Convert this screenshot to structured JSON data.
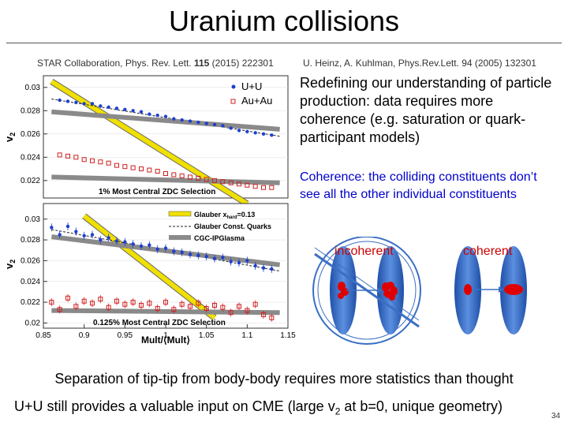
{
  "slide": {
    "title": "Uranium collisions",
    "citation_left_pre": "STAR Collaboration, Phys. Rev. Lett. ",
    "citation_left_vol": "115",
    "citation_left_post": " (2015) 222301",
    "citation_right": "U. Heinz, A. Kuhlman, Phys.Rev.Lett. 94 (2005) 132301",
    "paragraph1": "Redefining our understanding of particle production: data requires more coherence (e.g. saturation or quark-participant models)",
    "paragraph2": "Coherence: the colliding constituents don’t see all the other individual constituents",
    "diagram": {
      "incoherent_label": "incoherent",
      "coherent_label": "coherent"
    },
    "bottom_line1": "Separation of tip-tip from body-body requires more statistics than thought",
    "bottom_line2_pre": "U+U still provides a valuable input on CME (large v",
    "bottom_line2_sub": "2",
    "bottom_line2_post": " at b=0, unique geometry)",
    "page_number": "34",
    "colors": {
      "text_blue": "#0000cc",
      "text_red": "#cc0000",
      "nucleus_blue": "#3a6fc4",
      "parton_red": "#e00000"
    }
  },
  "chart_data": [
    {
      "type": "scatter",
      "panel": "top",
      "ylabel": "v2",
      "yticks": [
        "0.03",
        "0.028",
        "0.026",
        "0.024",
        "0.022"
      ],
      "ylim": [
        0.0205,
        0.031
      ],
      "xlim": [
        0.85,
        1.15
      ],
      "legend": [
        "U+U",
        "Au+Au"
      ],
      "annotation": "1% Most Central ZDC Selection",
      "series": [
        {
          "name": "U+U",
          "marker": "filled-circle",
          "color": "#1f3fd0",
          "x": [
            0.87,
            0.88,
            0.89,
            0.9,
            0.91,
            0.92,
            0.93,
            0.94,
            0.95,
            0.96,
            0.97,
            0.98,
            0.99,
            1.0,
            1.01,
            1.02,
            1.03,
            1.04,
            1.05,
            1.06,
            1.07,
            1.08,
            1.09,
            1.1,
            1.11,
            1.12,
            1.13
          ],
          "y": [
            0.0289,
            0.0288,
            0.0287,
            0.0286,
            0.0286,
            0.0284,
            0.0283,
            0.0282,
            0.0281,
            0.028,
            0.0279,
            0.0277,
            0.0276,
            0.0275,
            0.0273,
            0.0272,
            0.0271,
            0.027,
            0.0269,
            0.0268,
            0.0267,
            0.0265,
            0.0263,
            0.0262,
            0.0261,
            0.026,
            0.0259
          ]
        },
        {
          "name": "Au+Au",
          "marker": "open-square",
          "color": "#d02020",
          "x": [
            0.87,
            0.88,
            0.89,
            0.9,
            0.91,
            0.92,
            0.93,
            0.94,
            0.95,
            0.96,
            0.97,
            0.98,
            0.99,
            1.0,
            1.01,
            1.02,
            1.03,
            1.04,
            1.05,
            1.06,
            1.07,
            1.08,
            1.09,
            1.1,
            1.11,
            1.12,
            1.13
          ],
          "y": [
            0.0242,
            0.0241,
            0.024,
            0.0238,
            0.0237,
            0.0236,
            0.0235,
            0.0233,
            0.0232,
            0.0231,
            0.023,
            0.0229,
            0.0228,
            0.0226,
            0.0225,
            0.0224,
            0.0223,
            0.0222,
            0.0221,
            0.022,
            0.0219,
            0.0218,
            0.0217,
            0.0216,
            0.0215,
            0.0214,
            0.0214
          ]
        }
      ],
      "model_curves": [
        {
          "name": "Glauber",
          "x": [
            0.86,
            1.1
          ],
          "y": [
            0.0305,
            0.02
          ]
        },
        {
          "name": "Glauber Const. Quarks",
          "x": [
            0.86,
            1.14
          ],
          "y": [
            0.029,
            0.0258
          ]
        },
        {
          "name": "CGC-IPGlasma",
          "x": [
            0.86,
            1.14
          ],
          "y": [
            0.0279,
            0.0264
          ]
        },
        {
          "name": "Au+Au band",
          "x": [
            0.86,
            1.14
          ],
          "y": [
            0.0223,
            0.0218
          ]
        }
      ]
    },
    {
      "type": "scatter",
      "panel": "bottom",
      "ylabel": "v2",
      "xlabel": "Mult/⟨Mult⟩",
      "xticks": [
        "0.85",
        "0.9",
        "0.95",
        "1",
        "1.05",
        "1.1",
        "1.15"
      ],
      "yticks": [
        "0.03",
        "0.028",
        "0.026",
        "0.024",
        "0.022",
        "0.02"
      ],
      "ylim": [
        0.0195,
        0.0315
      ],
      "xlim": [
        0.85,
        1.15
      ],
      "legend": [
        "Glauber x_hard=0.13",
        "Glauber Const. Quarks",
        "CGC-IPGlasma"
      ],
      "annotation": "0.125% Most Central ZDC Selection",
      "series": [
        {
          "name": "U+U",
          "marker": "filled-circle",
          "color": "#1f3fd0",
          "x": [
            0.86,
            0.87,
            0.88,
            0.89,
            0.9,
            0.91,
            0.92,
            0.93,
            0.94,
            0.95,
            0.96,
            0.97,
            0.98,
            0.99,
            1.0,
            1.01,
            1.02,
            1.03,
            1.04,
            1.05,
            1.06,
            1.07,
            1.08,
            1.09,
            1.1,
            1.11,
            1.12,
            1.13
          ],
          "y": [
            0.0292,
            0.0285,
            0.0293,
            0.0288,
            0.0284,
            0.0285,
            0.028,
            0.0282,
            0.0279,
            0.0278,
            0.0276,
            0.0274,
            0.0275,
            0.0271,
            0.0272,
            0.0269,
            0.0268,
            0.0266,
            0.0265,
            0.0264,
            0.0262,
            0.0263,
            0.0259,
            0.0258,
            0.026,
            0.0255,
            0.0253,
            0.0252
          ]
        },
        {
          "name": "Au+Au",
          "marker": "open-square",
          "color": "#d02020",
          "x": [
            0.86,
            0.87,
            0.88,
            0.89,
            0.9,
            0.91,
            0.92,
            0.93,
            0.94,
            0.95,
            0.96,
            0.97,
            0.98,
            0.99,
            1.0,
            1.01,
            1.02,
            1.03,
            1.04,
            1.05,
            1.06,
            1.07,
            1.08,
            1.09,
            1.1,
            1.11,
            1.12,
            1.13
          ],
          "y": [
            0.022,
            0.0213,
            0.0224,
            0.0216,
            0.0221,
            0.0219,
            0.0223,
            0.0215,
            0.0221,
            0.0218,
            0.022,
            0.0217,
            0.0219,
            0.0214,
            0.022,
            0.0213,
            0.0218,
            0.0216,
            0.0219,
            0.0214,
            0.0217,
            0.0215,
            0.021,
            0.0216,
            0.0212,
            0.0218,
            0.0208,
            0.0205
          ]
        }
      ],
      "model_curves": [
        {
          "name": "Glauber",
          "x": [
            0.9,
            1.06
          ],
          "y": [
            0.0303,
            0.0205
          ]
        },
        {
          "name": "Glauber Const. Quarks",
          "x": [
            0.86,
            1.14
          ],
          "y": [
            0.029,
            0.025
          ]
        },
        {
          "name": "CGC-IPGlasma",
          "x": [
            0.86,
            1.14
          ],
          "y": [
            0.0283,
            0.0256
          ]
        },
        {
          "name": "Au+Au band",
          "x": [
            0.86,
            1.14
          ],
          "y": [
            0.0212,
            0.021
          ]
        }
      ]
    }
  ]
}
